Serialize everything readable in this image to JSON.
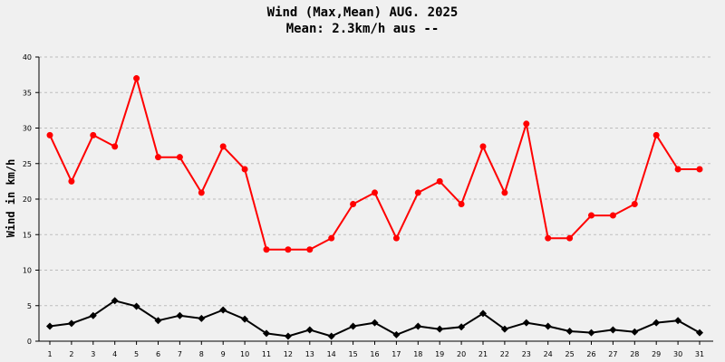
{
  "chart_data": {
    "type": "line",
    "title": "Wind (Max,Mean) AUG. 2025",
    "subtitle": "Mean: 2.3km/h aus --",
    "xlabel": "",
    "ylabel": "Wind in km/h",
    "ylim": [
      0,
      40
    ],
    "yticks": [
      0,
      5,
      10,
      15,
      20,
      25,
      30,
      35,
      40
    ],
    "grid": true,
    "x": [
      1,
      2,
      3,
      4,
      5,
      6,
      7,
      8,
      9,
      10,
      11,
      12,
      13,
      14,
      15,
      16,
      17,
      18,
      19,
      20,
      21,
      22,
      23,
      24,
      25,
      26,
      27,
      28,
      29,
      30,
      31
    ],
    "series": [
      {
        "color": "#ff0000",
        "marker": "circle",
        "values": [
          29.0,
          22.5,
          29.0,
          27.4,
          37.0,
          25.9,
          25.9,
          20.9,
          27.4,
          24.2,
          12.9,
          12.9,
          12.9,
          14.5,
          19.3,
          20.9,
          14.5,
          20.9,
          22.5,
          19.3,
          27.4,
          20.9,
          30.6,
          14.5,
          14.5,
          17.7,
          17.7,
          19.3,
          29.0,
          24.2,
          24.2
        ]
      },
      {
        "color": "#000000",
        "marker": "diamond",
        "values": [
          2.1,
          2.5,
          3.6,
          5.7,
          4.9,
          2.9,
          3.6,
          3.2,
          4.4,
          3.1,
          1.1,
          0.7,
          1.6,
          0.7,
          2.1,
          2.6,
          0.9,
          2.1,
          1.7,
          2.0,
          3.9,
          1.7,
          2.6,
          2.1,
          1.4,
          1.2,
          1.6,
          1.3,
          2.6,
          2.9,
          1.2
        ]
      }
    ]
  }
}
